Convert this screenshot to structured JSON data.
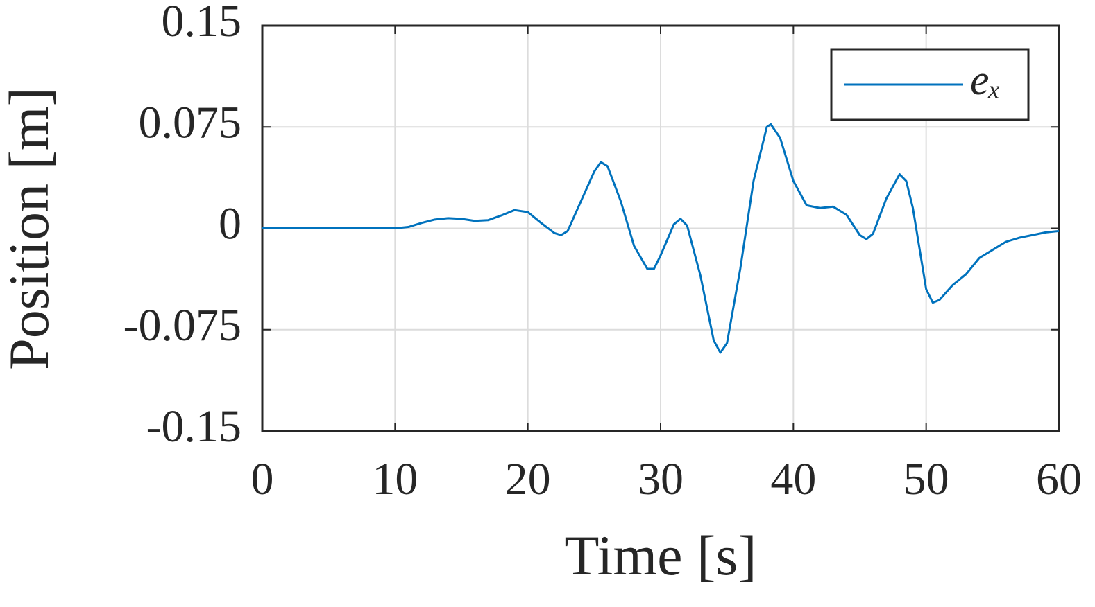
{
  "chart_data": {
    "type": "line",
    "xlabel": "Time [s]",
    "ylabel": "Position [m]",
    "x": [
      0,
      5,
      10,
      11,
      12,
      13,
      14,
      15,
      16,
      17,
      18,
      19,
      20,
      21,
      22,
      22.5,
      23,
      24,
      25,
      25.5,
      26,
      27,
      28,
      29,
      29.5,
      30,
      31,
      31.5,
      32,
      33,
      34,
      34.5,
      35,
      36,
      37,
      38,
      38.3,
      39,
      40,
      41,
      42,
      43,
      44,
      45,
      45.5,
      46,
      47,
      48,
      48.5,
      49,
      50,
      50.5,
      51,
      52,
      53,
      54,
      55,
      56,
      57,
      58,
      59,
      60
    ],
    "series": [
      {
        "name": "eₓ",
        "color": "#0072bd",
        "values": [
          0,
          0,
          0,
          0.001,
          0.004,
          0.0065,
          0.0075,
          0.007,
          0.0055,
          0.006,
          0.0095,
          0.0135,
          0.012,
          0.004,
          -0.0035,
          -0.005,
          -0.002,
          0.02,
          0.042,
          0.049,
          0.046,
          0.02,
          -0.013,
          -0.03,
          -0.03,
          -0.02,
          0.003,
          0.007,
          0.002,
          -0.035,
          -0.083,
          -0.092,
          -0.085,
          -0.03,
          0.035,
          0.075,
          0.077,
          0.067,
          0.035,
          0.017,
          0.015,
          0.016,
          0.01,
          -0.005,
          -0.008,
          -0.004,
          0.022,
          0.04,
          0.035,
          0.015,
          -0.045,
          -0.055,
          -0.053,
          -0.042,
          -0.034,
          -0.022,
          -0.016,
          -0.01,
          -0.007,
          -0.005,
          -0.003,
          -0.002
        ]
      }
    ],
    "xlim": [
      0,
      60
    ],
    "xticks": [
      0,
      10,
      20,
      30,
      40,
      50,
      60
    ],
    "ylim": [
      -0.15,
      0.15
    ],
    "yticks": [
      -0.15,
      -0.075,
      0,
      0.075,
      0.15
    ],
    "grid": true,
    "legend": "upper right"
  }
}
